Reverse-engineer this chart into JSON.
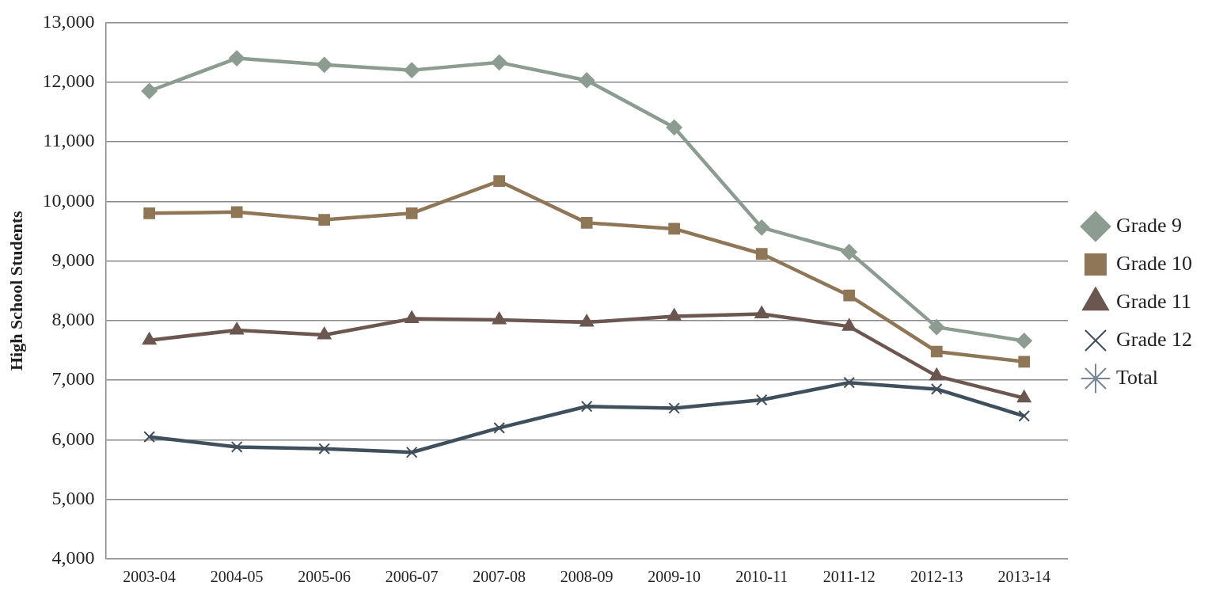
{
  "chart_data": {
    "type": "line",
    "ylabel": "High School Students",
    "categories": [
      "2003-04",
      "2004-05",
      "2005-06",
      "2006-07",
      "2007-08",
      "2008-09",
      "2009-10",
      "2010-11",
      "2011-12",
      "2012-13",
      "2013-14"
    ],
    "series": [
      {
        "name": "Grade 9",
        "color": "#8c9c90",
        "marker": "diamond",
        "values": [
          11850,
          12400,
          12290,
          12200,
          12330,
          12030,
          11240,
          9560,
          9150,
          7890,
          7660
        ]
      },
      {
        "name": "Grade 10",
        "color": "#8e7656",
        "marker": "square",
        "values": [
          9800,
          9820,
          9690,
          9800,
          10340,
          9640,
          9540,
          9120,
          8420,
          7480,
          7310
        ]
      },
      {
        "name": "Grade 11",
        "color": "#6b5650",
        "marker": "triangle",
        "values": [
          7670,
          7840,
          7760,
          8030,
          8010,
          7970,
          8070,
          8110,
          7900,
          7070,
          6700
        ]
      },
      {
        "name": "Grade 12",
        "color": "#404f5c",
        "marker": "cross",
        "values": [
          6050,
          5880,
          5850,
          5790,
          6200,
          6560,
          6530,
          6670,
          6960,
          6850,
          6400
        ]
      },
      {
        "name": "Total",
        "color": "#7a8796",
        "marker": "star",
        "values": [
          null,
          null,
          null,
          null,
          null,
          null,
          null,
          null,
          null,
          null,
          null
        ]
      }
    ],
    "ylim": [
      4000,
      13000
    ],
    "yticks": [
      {
        "value": 4000,
        "label": "4,000"
      },
      {
        "value": 5000,
        "label": "5,000"
      },
      {
        "value": 6000,
        "label": "6,000"
      },
      {
        "value": 7000,
        "label": "7,000"
      },
      {
        "value": 8000,
        "label": "8,000"
      },
      {
        "value": 9000,
        "label": "9,000"
      },
      {
        "value": 10000,
        "label": "10,000"
      },
      {
        "value": 11000,
        "label": "11,000"
      },
      {
        "value": 12000,
        "label": "12,000"
      },
      {
        "value": 13000,
        "label": "13,000"
      }
    ],
    "grid": "y",
    "legend": "right",
    "line_style": "solid"
  }
}
